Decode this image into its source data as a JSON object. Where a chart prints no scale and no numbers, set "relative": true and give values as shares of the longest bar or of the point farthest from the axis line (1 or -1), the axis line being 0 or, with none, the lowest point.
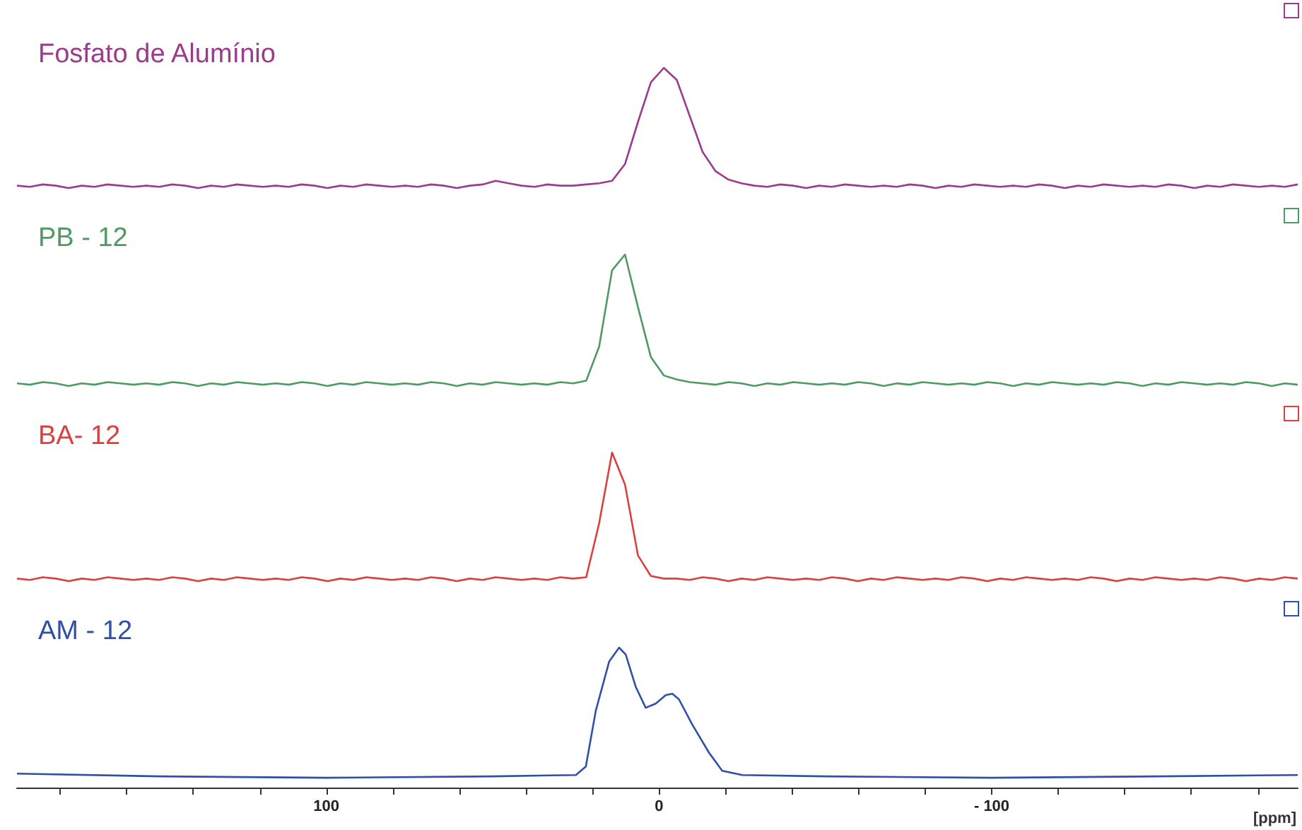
{
  "chart_data": [
    {
      "type": "line",
      "title": "Fosfato de Alumínio",
      "relative": true,
      "tick_labels": false,
      "categories": [
        null,
        null,
        null,
        null,
        null,
        null,
        null,
        null,
        null,
        null,
        null,
        null,
        null,
        null,
        null,
        null,
        null,
        null,
        null,
        null,
        null,
        null,
        null,
        null,
        null,
        null,
        null,
        null,
        null,
        null,
        null,
        null,
        null,
        null,
        null,
        null,
        null,
        null,
        null,
        null,
        null,
        null,
        null,
        null,
        null,
        null,
        null,
        null,
        null,
        null,
        null,
        null,
        null,
        null,
        null,
        null,
        null,
        null,
        null,
        null,
        null,
        null,
        null,
        null,
        null,
        null,
        null,
        null,
        null,
        null,
        null,
        null,
        null,
        null,
        null,
        null,
        null,
        null,
        null,
        null,
        null,
        null,
        null,
        null,
        null,
        null,
        null,
        null,
        null,
        null,
        null,
        null,
        null,
        null,
        null,
        null,
        null,
        null,
        null,
        null
      ],
      "series": [
        {
          "color": "#9b3b8c",
          "values": [
            0.02,
            0.01,
            0.03,
            0.02,
            0.0,
            0.02,
            0.01,
            0.03,
            0.02,
            0.01,
            0.02,
            0.01,
            0.03,
            0.02,
            0.0,
            0.02,
            0.01,
            0.03,
            0.02,
            0.01,
            0.02,
            0.01,
            0.03,
            0.02,
            0.0,
            0.02,
            0.01,
            0.03,
            0.02,
            0.01,
            0.02,
            0.01,
            0.03,
            0.02,
            0.0,
            0.02,
            0.03,
            0.06,
            0.04,
            0.02,
            0.01,
            0.03,
            0.02,
            0.02,
            0.03,
            0.04,
            0.06,
            0.2,
            0.55,
            0.88,
            1,
            0.9,
            0.6,
            0.3,
            0.14,
            0.07,
            0.04,
            0.02,
            0.01,
            0.03,
            0.02,
            0.0,
            0.02,
            0.01,
            0.03,
            0.02,
            0.01,
            0.02,
            0.01,
            0.03,
            0.02,
            0.0,
            0.02,
            0.01,
            0.03,
            0.02,
            0.01,
            0.02,
            0.01,
            0.03,
            0.02,
            0.0,
            0.02,
            0.01,
            0.03,
            0.02,
            0.01,
            0.02,
            0.01,
            0.03,
            0.02,
            0.0,
            0.02,
            0.01,
            0.03,
            0.02,
            0.01,
            0.02,
            0.01,
            0.03
          ]
        }
      ]
    },
    {
      "type": "line",
      "title": "PB - 12",
      "relative": true,
      "tick_labels": false,
      "categories": [
        null,
        null,
        null,
        null,
        null,
        null,
        null,
        null,
        null,
        null,
        null,
        null,
        null,
        null,
        null,
        null,
        null,
        null,
        null,
        null,
        null,
        null,
        null,
        null,
        null,
        null,
        null,
        null,
        null,
        null,
        null,
        null,
        null,
        null,
        null,
        null,
        null,
        null,
        null,
        null,
        null,
        null,
        null,
        null,
        null,
        null,
        null,
        null,
        null,
        null,
        null,
        null,
        null,
        null,
        null,
        null,
        null,
        null,
        null,
        null,
        null,
        null,
        null,
        null,
        null,
        null,
        null,
        null,
        null,
        null,
        null,
        null,
        null,
        null,
        null,
        null,
        null,
        null,
        null,
        null,
        null,
        null,
        null,
        null,
        null,
        null,
        null,
        null,
        null,
        null,
        null,
        null,
        null,
        null,
        null,
        null,
        null,
        null,
        null,
        null
      ],
      "series": [
        {
          "color": "#4f9a62",
          "values": [
            0.02,
            0.01,
            0.03,
            0.02,
            0.0,
            0.02,
            0.01,
            0.03,
            0.02,
            0.01,
            0.02,
            0.01,
            0.03,
            0.02,
            0.0,
            0.02,
            0.01,
            0.03,
            0.02,
            0.01,
            0.02,
            0.01,
            0.03,
            0.02,
            0.0,
            0.02,
            0.01,
            0.03,
            0.02,
            0.01,
            0.02,
            0.01,
            0.03,
            0.02,
            0.0,
            0.02,
            0.01,
            0.03,
            0.02,
            0.01,
            0.02,
            0.01,
            0.03,
            0.02,
            0.04,
            0.3,
            0.88,
            1,
            0.6,
            0.22,
            0.08,
            0.05,
            0.03,
            0.02,
            0.01,
            0.03,
            0.02,
            0.0,
            0.02,
            0.01,
            0.03,
            0.02,
            0.01,
            0.02,
            0.01,
            0.03,
            0.02,
            0.0,
            0.02,
            0.01,
            0.03,
            0.02,
            0.01,
            0.02,
            0.01,
            0.03,
            0.02,
            0.0,
            0.02,
            0.01,
            0.03,
            0.02,
            0.01,
            0.02,
            0.01,
            0.03,
            0.02,
            0.0,
            0.02,
            0.01,
            0.03,
            0.02,
            0.01,
            0.02,
            0.01,
            0.03,
            0.02,
            0.0,
            0.02,
            0.01
          ]
        }
      ]
    },
    {
      "type": "line",
      "title": "BA- 12",
      "relative": true,
      "tick_labels": false,
      "categories": [
        null,
        null,
        null,
        null,
        null,
        null,
        null,
        null,
        null,
        null,
        null,
        null,
        null,
        null,
        null,
        null,
        null,
        null,
        null,
        null,
        null,
        null,
        null,
        null,
        null,
        null,
        null,
        null,
        null,
        null,
        null,
        null,
        null,
        null,
        null,
        null,
        null,
        null,
        null,
        null,
        null,
        null,
        null,
        null,
        null,
        null,
        null,
        null,
        null,
        null,
        null,
        null,
        null,
        null,
        null,
        null,
        null,
        null,
        null,
        null,
        null,
        null,
        null,
        null,
        null,
        null,
        null,
        null,
        null,
        null,
        null,
        null,
        null,
        null,
        null,
        null,
        null,
        null,
        null,
        null,
        null,
        null,
        null,
        null,
        null,
        null,
        null,
        null,
        null,
        null,
        null,
        null,
        null,
        null,
        null,
        null,
        null,
        null,
        null,
        null
      ],
      "series": [
        {
          "color": "#d9413f",
          "values": [
            0.02,
            0.01,
            0.03,
            0.02,
            0.0,
            0.02,
            0.01,
            0.03,
            0.02,
            0.01,
            0.02,
            0.01,
            0.03,
            0.02,
            0.0,
            0.02,
            0.01,
            0.03,
            0.02,
            0.01,
            0.02,
            0.01,
            0.03,
            0.02,
            0.0,
            0.02,
            0.01,
            0.03,
            0.02,
            0.01,
            0.02,
            0.01,
            0.03,
            0.02,
            0.0,
            0.02,
            0.01,
            0.03,
            0.02,
            0.01,
            0.02,
            0.01,
            0.03,
            0.02,
            0.03,
            0.45,
            1,
            0.75,
            0.2,
            0.04,
            0.02,
            0.02,
            0.01,
            0.03,
            0.02,
            0.0,
            0.02,
            0.01,
            0.03,
            0.02,
            0.01,
            0.02,
            0.01,
            0.03,
            0.02,
            0.0,
            0.02,
            0.01,
            0.03,
            0.02,
            0.01,
            0.02,
            0.01,
            0.03,
            0.02,
            0.0,
            0.02,
            0.01,
            0.03,
            0.02,
            0.01,
            0.02,
            0.01,
            0.03,
            0.02,
            0.0,
            0.02,
            0.01,
            0.03,
            0.02,
            0.01,
            0.02,
            0.01,
            0.03,
            0.02,
            0.0,
            0.02,
            0.01,
            0.03,
            0.02
          ]
        }
      ]
    },
    {
      "type": "line",
      "title": "AM - 12",
      "relative": true,
      "xlim": [
        193,
        -192
      ],
      "tick_labels": "x",
      "xlabel": "[ppm]",
      "xticks": [
        {
          "value": 180,
          "label": null
        },
        {
          "value": 160,
          "label": null
        },
        {
          "value": 140,
          "label": null
        },
        {
          "value": 120,
          "label": null
        },
        100,
        {
          "value": 80,
          "label": null
        },
        {
          "value": 60,
          "label": null
        },
        {
          "value": 40,
          "label": null
        },
        {
          "value": 20,
          "label": null
        },
        0,
        {
          "value": -20,
          "label": null
        },
        {
          "value": -40,
          "label": null
        },
        {
          "value": -60,
          "label": null
        },
        {
          "value": -80,
          "label": null
        },
        {
          "value": -100,
          "label": "- 100"
        },
        {
          "value": -120,
          "label": null
        },
        {
          "value": -140,
          "label": null
        },
        {
          "value": -160,
          "label": null
        },
        {
          "value": -180,
          "label": null
        }
      ],
      "x": [
        193,
        150,
        100,
        50,
        25,
        22,
        19,
        15,
        12,
        10,
        7,
        4,
        1,
        -2,
        -4,
        -6,
        -10,
        -15,
        -19,
        -25,
        -50,
        -100,
        -150,
        -192
      ],
      "series": [
        {
          "color": "#2f4fa8",
          "values": [
            0.1,
            0.08,
            0.07,
            0.08,
            0.09,
            0.15,
            0.55,
            0.9,
            1,
            0.95,
            0.72,
            0.57,
            0.6,
            0.66,
            0.67,
            0.63,
            0.45,
            0.25,
            0.12,
            0.09,
            0.08,
            0.07,
            0.08,
            0.09
          ]
        }
      ]
    }
  ]
}
